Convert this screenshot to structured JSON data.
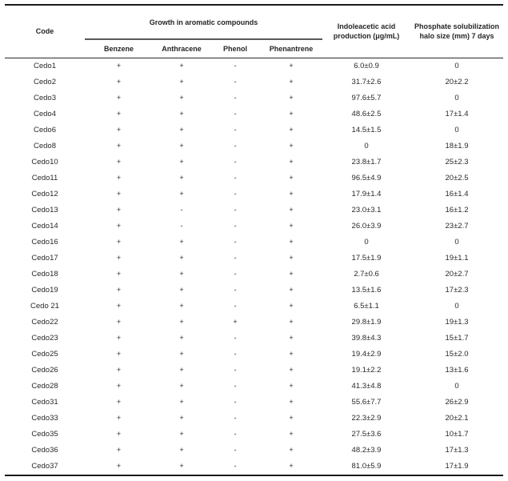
{
  "table": {
    "header": {
      "code": "Code",
      "group": "Growth in aromatic compounds",
      "subcolumns": [
        "Benzene",
        "Anthracene",
        "Phenol",
        "Phenantrene"
      ],
      "iaa": {
        "line1": "Indoleacetic acid",
        "line2": "production (μg/mL)"
      },
      "phosphate": {
        "line1": "Phosphate solubilization",
        "line2": "halo size (mm) 7 days"
      }
    },
    "rows": [
      {
        "code": "Cedo1",
        "benzene": "+",
        "anthracene": "+",
        "phenol": "-",
        "phenantrene": "+",
        "iaa": "6.0±0.9",
        "phosphate": "0"
      },
      {
        "code": "Cedo2",
        "benzene": "+",
        "anthracene": "+",
        "phenol": "-",
        "phenantrene": "+",
        "iaa": "31.7±2.6",
        "phosphate": "20±2.2"
      },
      {
        "code": "Cedo3",
        "benzene": "+",
        "anthracene": "+",
        "phenol": "-",
        "phenantrene": "+",
        "iaa": "97.6±5.7",
        "phosphate": "0"
      },
      {
        "code": "Cedo4",
        "benzene": "+",
        "anthracene": "+",
        "phenol": "-",
        "phenantrene": "+",
        "iaa": "48.6±2.5",
        "phosphate": "17±1.4"
      },
      {
        "code": "Cedo6",
        "benzene": "+",
        "anthracene": "+",
        "phenol": "-",
        "phenantrene": "+",
        "iaa": "14.5±1.5",
        "phosphate": "0"
      },
      {
        "code": "Cedo8",
        "benzene": "+",
        "anthracene": "+",
        "phenol": "-",
        "phenantrene": "+",
        "iaa": "0",
        "phosphate": "18±1.9"
      },
      {
        "code": "Cedo10",
        "benzene": "+",
        "anthracene": "+",
        "phenol": "-",
        "phenantrene": "+",
        "iaa": "23.8±1.7",
        "phosphate": "25±2.3"
      },
      {
        "code": "Cedo11",
        "benzene": "+",
        "anthracene": "+",
        "phenol": "-",
        "phenantrene": "+",
        "iaa": "96.5±4.9",
        "phosphate": "20±2.5"
      },
      {
        "code": "Cedo12",
        "benzene": "+",
        "anthracene": "+",
        "phenol": "-",
        "phenantrene": "+",
        "iaa": "17.9±1.4",
        "phosphate": "16±1.4"
      },
      {
        "code": "Cedo13",
        "benzene": "+",
        "anthracene": "-",
        "phenol": "-",
        "phenantrene": "+",
        "iaa": "23.0±3.1",
        "phosphate": "16±1.2"
      },
      {
        "code": "Cedo14",
        "benzene": "+",
        "anthracene": "-",
        "phenol": "-",
        "phenantrene": "+",
        "iaa": "26.0±3.9",
        "phosphate": "23±2.7"
      },
      {
        "code": "Cedo16",
        "benzene": "+",
        "anthracene": "+",
        "phenol": "-",
        "phenantrene": "+",
        "iaa": "0",
        "phosphate": "0"
      },
      {
        "code": "Cedo17",
        "benzene": "+",
        "anthracene": "+",
        "phenol": "-",
        "phenantrene": "+",
        "iaa": "17.5±1.9",
        "phosphate": "19±1.1"
      },
      {
        "code": "Cedo18",
        "benzene": "+",
        "anthracene": "+",
        "phenol": "-",
        "phenantrene": "+",
        "iaa": "2.7±0.6",
        "phosphate": "20±2.7"
      },
      {
        "code": "Cedo19",
        "benzene": "+",
        "anthracene": "+",
        "phenol": "-",
        "phenantrene": "+",
        "iaa": "13.5±1.6",
        "phosphate": "17±2.3"
      },
      {
        "code": "Cedo 21",
        "benzene": "+",
        "anthracene": "+",
        "phenol": "-",
        "phenantrene": "+",
        "iaa": "6.5±1.1",
        "phosphate": "0"
      },
      {
        "code": "Cedo22",
        "benzene": "+",
        "anthracene": "+",
        "phenol": "+",
        "phenantrene": "+",
        "iaa": "29.8±1.9",
        "phosphate": "19±1.3"
      },
      {
        "code": "Cedo23",
        "benzene": "+",
        "anthracene": "+",
        "phenol": "-",
        "phenantrene": "+",
        "iaa": "39.8±4.3",
        "phosphate": "15±1.7"
      },
      {
        "code": "Cedo25",
        "benzene": "+",
        "anthracene": "+",
        "phenol": "-",
        "phenantrene": "+",
        "iaa": "19.4±2.9",
        "phosphate": "15±2.0"
      },
      {
        "code": "Cedo26",
        "benzene": "+",
        "anthracene": "+",
        "phenol": "-",
        "phenantrene": "+",
        "iaa": "19.1±2.2",
        "phosphate": "13±1.6"
      },
      {
        "code": "Cedo28",
        "benzene": "+",
        "anthracene": "+",
        "phenol": "-",
        "phenantrene": "+",
        "iaa": "41.3±4.8",
        "phosphate": "0"
      },
      {
        "code": "Cedo31",
        "benzene": "+",
        "anthracene": "+",
        "phenol": "-",
        "phenantrene": "+",
        "iaa": "55.6±7.7",
        "phosphate": "26±2.9"
      },
      {
        "code": "Cedo33",
        "benzene": "+",
        "anthracene": "+",
        "phenol": "-",
        "phenantrene": "+",
        "iaa": "22.3±2.9",
        "phosphate": "20±2.1"
      },
      {
        "code": "Cedo35",
        "benzene": "+",
        "anthracene": "+",
        "phenol": "-",
        "phenantrene": "+",
        "iaa": "27.5±3.6",
        "phosphate": "10±1.7"
      },
      {
        "code": "Cedo36",
        "benzene": "+",
        "anthracene": "+",
        "phenol": "-",
        "phenantrene": "+",
        "iaa": "48.2±3.9",
        "phosphate": "17±1.3"
      },
      {
        "code": "Cedo37",
        "benzene": "+",
        "anthracene": "+",
        "phenol": "-",
        "phenantrene": "+",
        "iaa": "81.0±5.9",
        "phosphate": "17±1.9"
      }
    ]
  }
}
